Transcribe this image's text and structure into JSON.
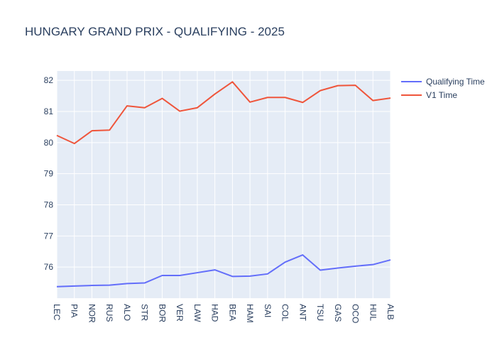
{
  "chart_data": {
    "type": "line",
    "title": "HUNGARY GRAND PRIX - QUALIFYING - 2025",
    "xlabel": "",
    "ylabel": "",
    "categories": [
      "LEC",
      "PIA",
      "NOR",
      "RUS",
      "ALO",
      "STR",
      "BOR",
      "VER",
      "LAW",
      "HAD",
      "BEA",
      "HAM",
      "SAI",
      "COL",
      "ANT",
      "TSU",
      "GAS",
      "OCO",
      "HUL",
      "ALB"
    ],
    "series": [
      {
        "name": "Qualifying Time",
        "color": "#636efa",
        "values": [
          75.37,
          75.39,
          75.41,
          75.42,
          75.47,
          75.49,
          75.73,
          75.73,
          75.82,
          75.91,
          75.7,
          75.71,
          75.78,
          76.16,
          76.39,
          75.9,
          75.97,
          76.03,
          76.08,
          76.23
        ]
      },
      {
        "name": "V1 Time",
        "color": "#ef553b",
        "values": [
          80.23,
          79.97,
          80.38,
          80.4,
          81.18,
          81.12,
          81.42,
          81.01,
          81.12,
          81.56,
          81.95,
          81.3,
          81.45,
          81.45,
          81.29,
          81.67,
          81.83,
          81.84,
          81.35,
          81.43
        ]
      }
    ],
    "yticks": [
      76,
      77,
      78,
      79,
      80,
      81,
      82
    ],
    "ylim": [
      75.0,
      82.3
    ],
    "grid": true,
    "legend_position": "top-right",
    "plot_background": "#e5ecf6",
    "grid_color": "#ffffff",
    "text_color": "#2a3f5f"
  }
}
